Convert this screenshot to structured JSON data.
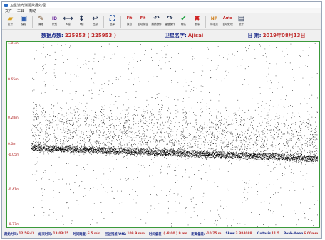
{
  "window": {
    "title": "卫星激光测距数据处理"
  },
  "menu": [
    "文件",
    "工具",
    "帮助"
  ],
  "toolbar": [
    {
      "name": "open-file-button",
      "icon": "folder-icon",
      "glyph": "▰",
      "color": "#d8a020",
      "label": "打开"
    },
    {
      "name": "save-button",
      "icon": "floppy-icon",
      "glyph": "▣",
      "color": "#3060b0",
      "label": "保存"
    },
    {
      "name": "cleanup-button",
      "icon": "broom-icon",
      "glyph": "✎",
      "color": "#806040",
      "label": "清理"
    },
    {
      "name": "id-button",
      "icon": "id-icon",
      "glyph": "ID",
      "color": "#7030a0",
      "label": "识别"
    },
    {
      "name": "x-zoom-button",
      "icon": "x-zoom-icon",
      "glyph": "⟷",
      "color": "#203050",
      "label": "X轴"
    },
    {
      "name": "y-zoom-button",
      "icon": "y-zoom-icon",
      "glyph": "↕",
      "color": "#203050",
      "label": "Y轴"
    },
    {
      "name": "restore-button",
      "icon": "restore-icon",
      "glyph": "↩",
      "color": "#203050",
      "label": "还原"
    },
    {
      "name": "select-button",
      "icon": "select-icon",
      "glyph": "⛶",
      "color": "#2050a0",
      "label": "选择"
    },
    {
      "name": "fit-button",
      "icon": "fit-icon",
      "glyph": "Fit",
      "color": "#c02020",
      "label": "拟合"
    },
    {
      "name": "auto-fit-button",
      "icon": "auto-fit-icon",
      "glyph": "Fit",
      "color": "#c02020",
      "label": "自动拟合"
    },
    {
      "name": "undo-button",
      "icon": "undo-icon",
      "glyph": "↶",
      "color": "#203050",
      "label": "撤销操作"
    },
    {
      "name": "redo-button",
      "icon": "redo-icon",
      "glyph": "↷",
      "color": "#203050",
      "label": "重做操作"
    },
    {
      "name": "confirm-button",
      "icon": "checkmark-icon",
      "glyph": "✔",
      "color": "#20a040",
      "label": "确认"
    },
    {
      "name": "delete-button",
      "icon": "cross-icon",
      "glyph": "✖",
      "color": "#d02020",
      "label": "删除"
    },
    {
      "name": "np-button",
      "icon": "np-icon",
      "glyph": "NP",
      "color": "#d08020",
      "label": "标准点"
    },
    {
      "name": "auto-process-button",
      "icon": "auto-process-icon",
      "glyph": "Auto",
      "color": "#c02020",
      "label": "自动处理"
    },
    {
      "name": "stats-button",
      "icon": "stats-icon",
      "glyph": "▤",
      "color": "#203050",
      "label": "统计"
    }
  ],
  "info": {
    "points_label": "数据点数:",
    "points_value": "225953 ( 225953 )",
    "satellite_label": "卫星名字:",
    "satellite_value": "Ajisai",
    "date_label": "日    期:",
    "date_value": "2019年08月13日"
  },
  "chart_data": {
    "type": "scatter",
    "title": "",
    "xlabel": "",
    "ylabel": "",
    "y_tick_labels": [
      "1.01m",
      "0.65m",
      "0.28m",
      "0.0m",
      "-0.05m",
      "-0.41m",
      "-0.77m"
    ],
    "ylim": [
      -0.77,
      1.01
    ],
    "points_color": "#000000",
    "point_count": 225953
  },
  "status": [
    {
      "label": "起始时间:",
      "value": "12:56:43"
    },
    {
      "label": "结束时间:",
      "value": "13:03:15"
    },
    {
      "label": "时间跨度:",
      "value": "6.5 min"
    },
    {
      "label": "回波残差RMS:",
      "value": "109.9 mm"
    },
    {
      "label": "时间偏差:",
      "value": "( -8.00 ) 9 ms"
    },
    {
      "label": "距离偏差:",
      "value": "-10.75 m"
    },
    {
      "label": "Skew",
      "value": "3.384088"
    },
    {
      "label": "Kurtosis",
      "value": "11.5"
    },
    {
      "label": "Peak-Mean",
      "value": "6.00mm"
    }
  ]
}
